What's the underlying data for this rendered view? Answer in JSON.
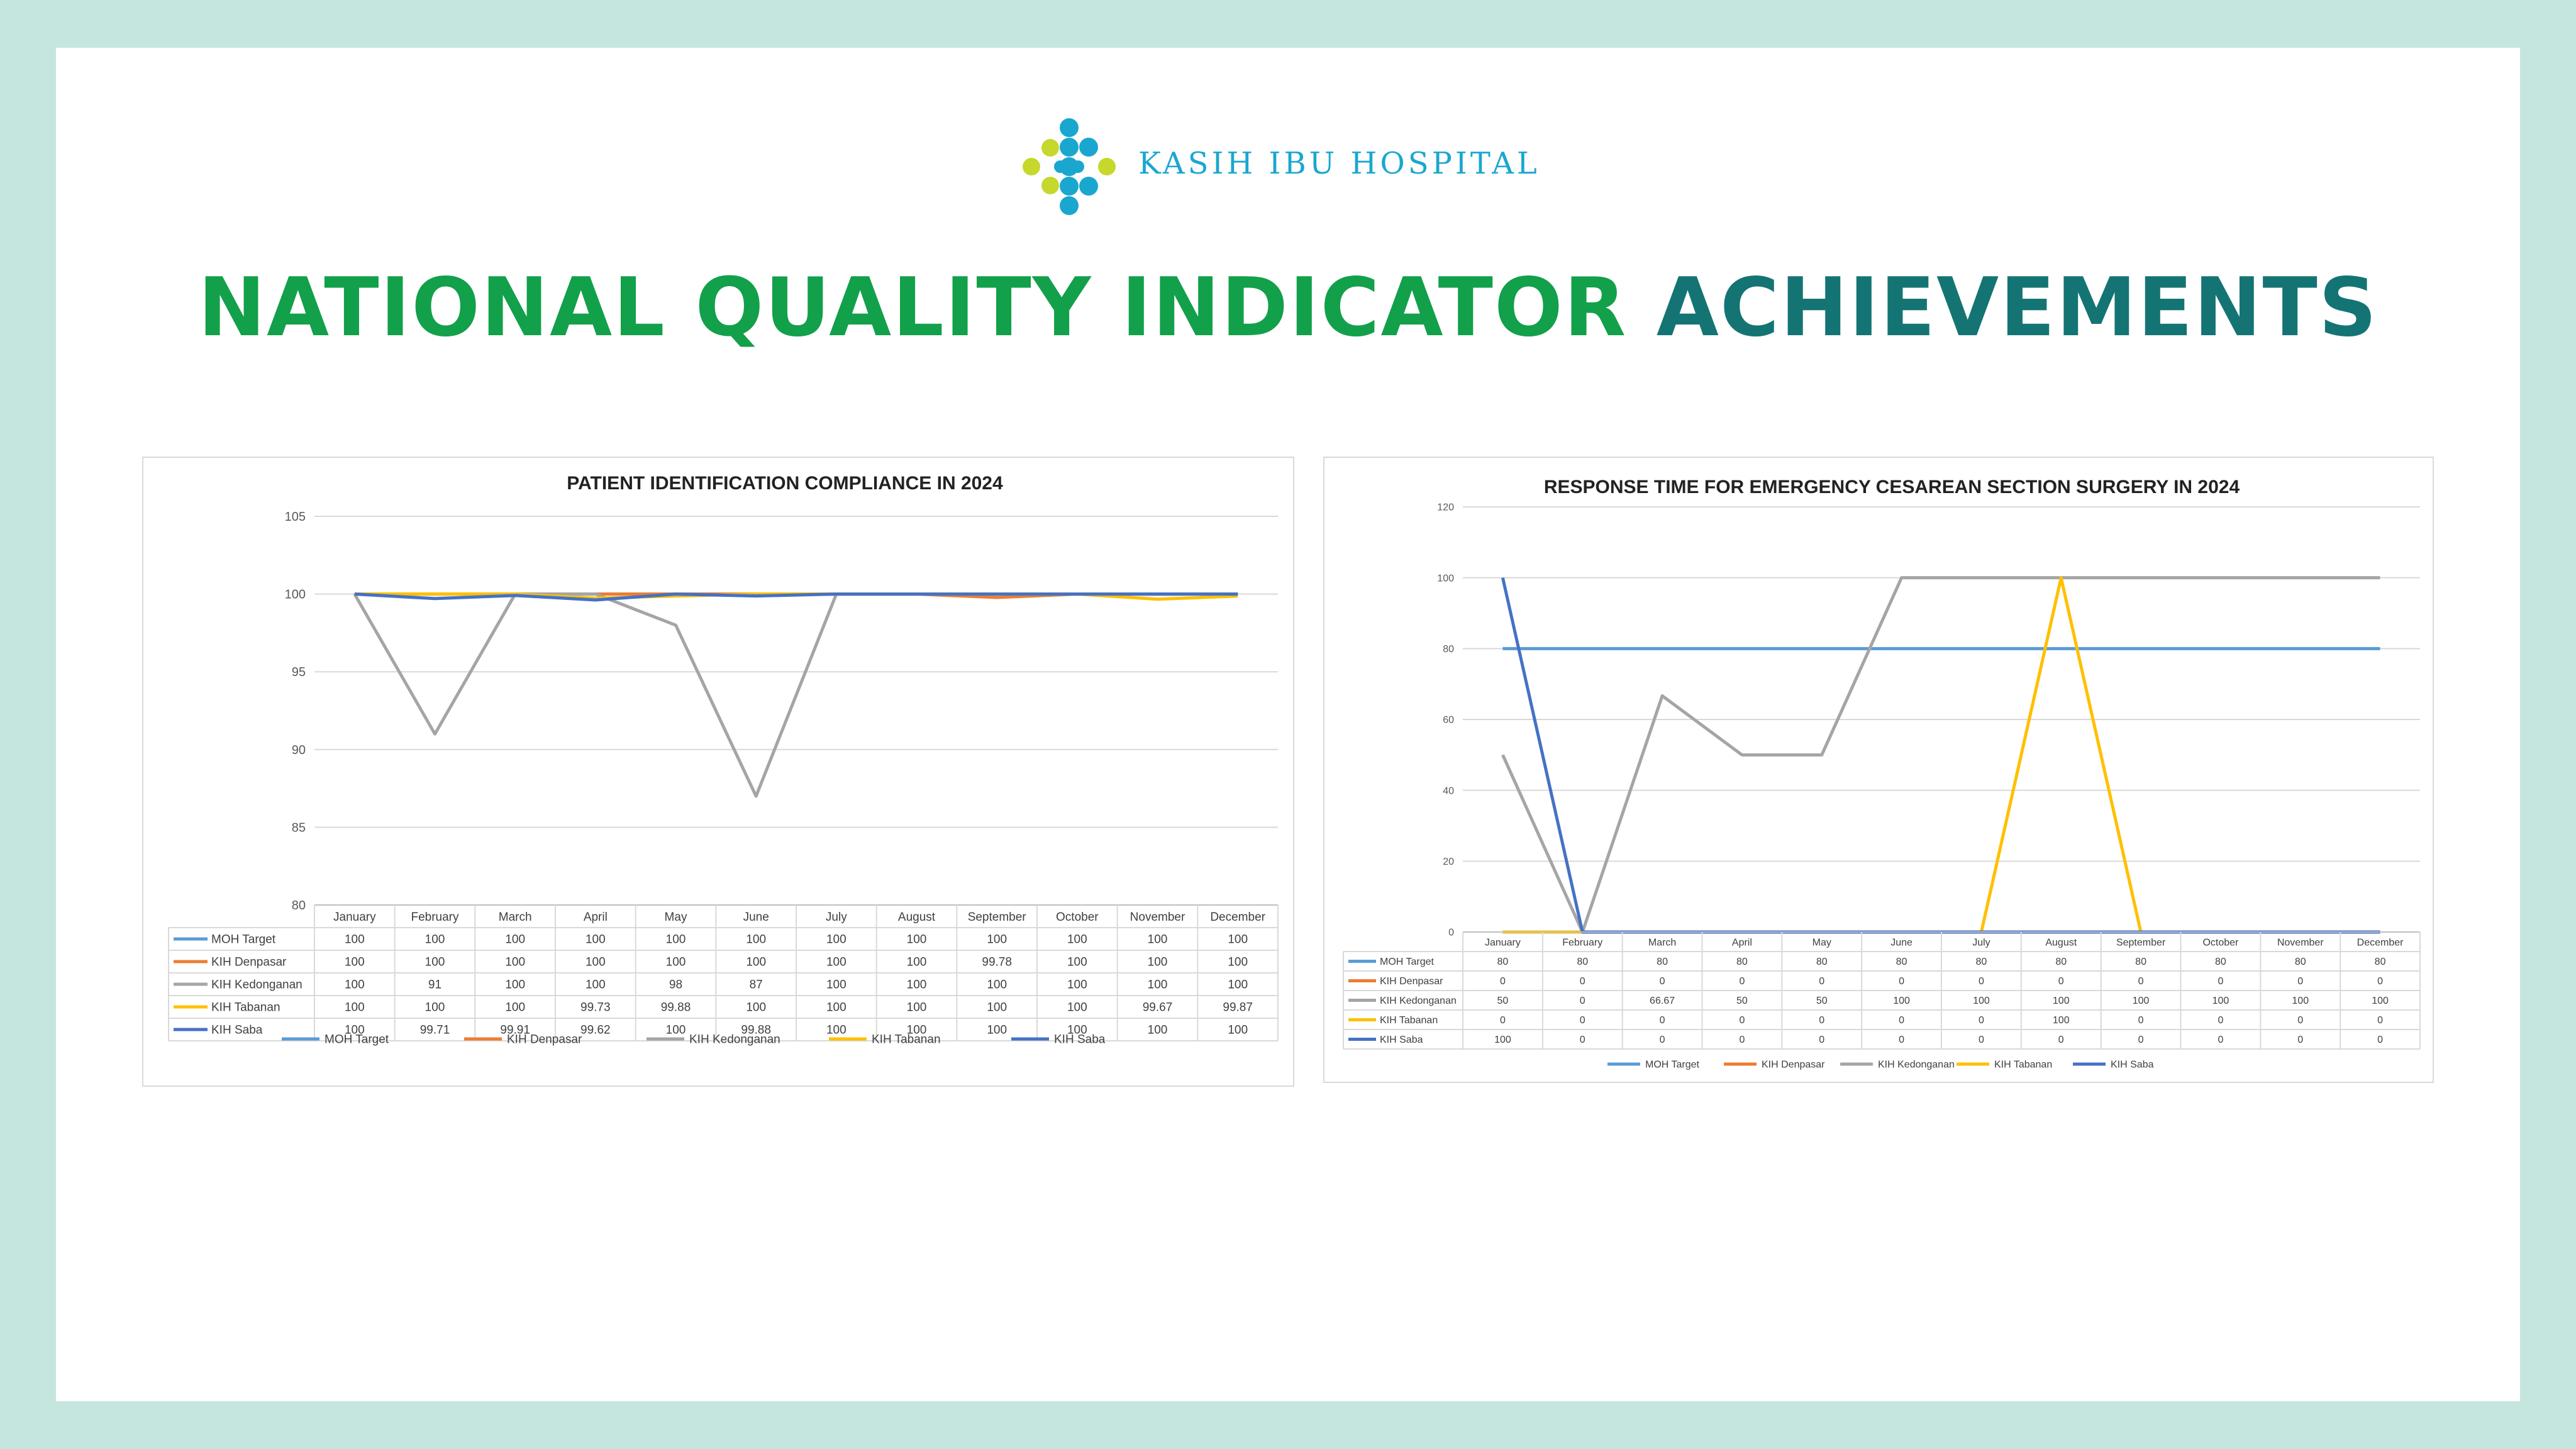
{
  "brand": {
    "name": "KASIH IBU HOSPITAL",
    "colors": {
      "lime": "#c6d82b",
      "blue": "#1aa7cf"
    }
  },
  "headline": {
    "part1": "NATIONAL QUALITY INDICATOR",
    "part2": "ACHIEVEMENTS",
    "color1": "#12a04a",
    "color2": "#147474"
  },
  "chart_data": [
    {
      "type": "line",
      "title": "PATIENT IDENTIFICATION COMPLIANCE IN 2024",
      "categories": [
        "January",
        "February",
        "March",
        "April",
        "May",
        "June",
        "July",
        "August",
        "September",
        "October",
        "November",
        "December"
      ],
      "ylim": [
        80,
        105
      ],
      "yticks": [
        80,
        85,
        90,
        95,
        100,
        105
      ],
      "grid": true,
      "legend": "bottom",
      "data_table": true,
      "series": [
        {
          "name": "MOH Target",
          "color": "#5b9bd5",
          "values": [
            100,
            100,
            100,
            100,
            100,
            100,
            100,
            100,
            100,
            100,
            100,
            100
          ]
        },
        {
          "name": "KIH Denpasar",
          "color": "#ed7d31",
          "values": [
            100,
            100,
            100,
            100,
            100,
            100,
            100,
            100,
            99.78,
            100,
            100,
            100
          ]
        },
        {
          "name": "KIH Kedonganan",
          "color": "#a5a5a5",
          "values": [
            100,
            91,
            100,
            100,
            98,
            87,
            100,
            100,
            100,
            100,
            100,
            100
          ]
        },
        {
          "name": "KIH Tabanan",
          "color": "#ffc000",
          "values": [
            100,
            100,
            100,
            99.73,
            99.88,
            100,
            100,
            100,
            100,
            100,
            99.67,
            99.87
          ]
        },
        {
          "name": "KIH Saba",
          "color": "#4472c4",
          "values": [
            100,
            99.71,
            99.91,
            99.62,
            100,
            99.88,
            100,
            100,
            100,
            100,
            100,
            100
          ]
        }
      ]
    },
    {
      "type": "line",
      "title": "RESPONSE TIME FOR EMERGENCY CESAREAN SECTION SURGERY IN 2024",
      "categories": [
        "January",
        "February",
        "March",
        "April",
        "May",
        "June",
        "July",
        "August",
        "September",
        "October",
        "November",
        "December"
      ],
      "ylim": [
        0,
        120
      ],
      "yticks": [
        0,
        20,
        40,
        60,
        80,
        100,
        120
      ],
      "grid": true,
      "legend": "bottom",
      "data_table": true,
      "series": [
        {
          "name": "MOH Target",
          "color": "#5b9bd5",
          "values": [
            80,
            80,
            80,
            80,
            80,
            80,
            80,
            80,
            80,
            80,
            80,
            80
          ]
        },
        {
          "name": "KIH Denpasar",
          "color": "#ed7d31",
          "values": [
            0,
            0,
            0,
            0,
            0,
            0,
            0,
            0,
            0,
            0,
            0,
            0
          ]
        },
        {
          "name": "KIH Kedonganan",
          "color": "#a5a5a5",
          "values": [
            50,
            0,
            66.67,
            50,
            50,
            100,
            100,
            100,
            100,
            100,
            100,
            100
          ]
        },
        {
          "name": "KIH Tabanan",
          "color": "#ffc000",
          "values": [
            0,
            0,
            0,
            0,
            0,
            0,
            0,
            100,
            0,
            0,
            0,
            0
          ]
        },
        {
          "name": "KIH Saba",
          "color": "#4472c4",
          "values": [
            100,
            0,
            0,
            0,
            0,
            0,
            0,
            0,
            0,
            0,
            0,
            0
          ]
        }
      ]
    }
  ]
}
